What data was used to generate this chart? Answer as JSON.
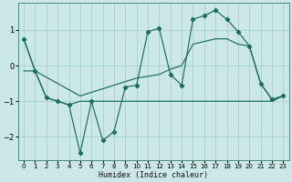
{
  "xlabel": "Humidex (Indice chaleur)",
  "bg_color": "#cce8e6",
  "grid_color": "#aad4d0",
  "line_color": "#1a6b60",
  "xlim": [
    -0.5,
    23.5
  ],
  "ylim": [
    -2.65,
    1.75
  ],
  "xticks": [
    0,
    1,
    2,
    3,
    4,
    5,
    6,
    7,
    8,
    9,
    10,
    11,
    12,
    13,
    14,
    15,
    16,
    17,
    18,
    19,
    20,
    21,
    22,
    23
  ],
  "yticks": [
    -2,
    -1,
    0,
    1
  ],
  "curve1_x": [
    0,
    1,
    2,
    3,
    4,
    5,
    6,
    7,
    8,
    9,
    10,
    11,
    12,
    13,
    14,
    15,
    16,
    17,
    18,
    19,
    20,
    21,
    22,
    23
  ],
  "curve1_y": [
    0.75,
    -0.15,
    -0.9,
    -1.0,
    -1.1,
    -2.45,
    -1.0,
    -2.1,
    -1.85,
    -0.6,
    -0.55,
    0.95,
    1.05,
    -0.25,
    -0.55,
    1.3,
    1.4,
    1.55,
    1.3,
    0.95,
    0.55,
    -0.5,
    -0.95,
    -0.85
  ],
  "curve2_x": [
    0,
    1,
    2,
    3,
    4,
    5,
    6,
    7,
    8,
    9,
    10,
    11,
    12,
    13,
    14,
    15,
    16,
    17,
    18,
    19,
    20,
    21,
    22,
    23
  ],
  "curve2_y": [
    0.75,
    -0.15,
    -0.9,
    -1.0,
    -1.1,
    -1.0,
    -1.0,
    -1.0,
    -1.0,
    -1.0,
    -1.0,
    -1.0,
    -1.0,
    -1.0,
    -1.0,
    -1.0,
    -1.0,
    -1.0,
    -1.0,
    -1.0,
    -1.0,
    -1.0,
    -1.0,
    -0.85
  ],
  "curve3_x": [
    0,
    1,
    5,
    10,
    12,
    13,
    14,
    15,
    17,
    18,
    19,
    20,
    21,
    22,
    23
  ],
  "curve3_y": [
    -0.15,
    -0.15,
    -0.85,
    -0.35,
    -0.25,
    -0.1,
    0.0,
    0.6,
    0.75,
    0.75,
    0.6,
    0.55,
    -0.5,
    -0.95,
    -0.85
  ]
}
